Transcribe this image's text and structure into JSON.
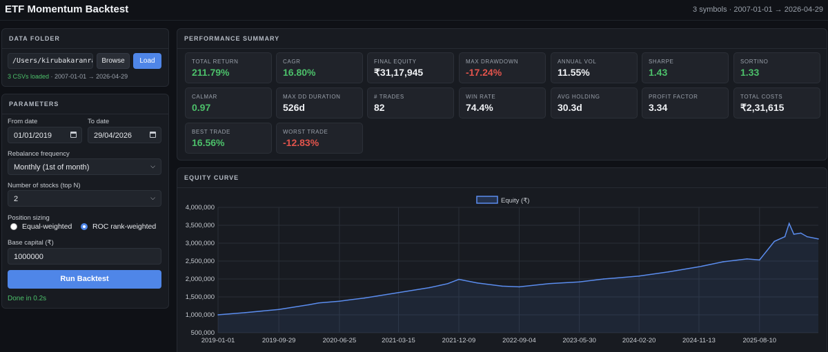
{
  "app": {
    "title": "ETF Momentum Backtest",
    "meta": "3 symbols · 2007-01-01 → 2026-04-29"
  },
  "data_folder": {
    "heading": "DATA FOLDER",
    "path_value": "/Users/kirubakaranra",
    "browse_label": "Browse",
    "load_label": "Load",
    "status_count": "3 CSVs loaded",
    "status_range": " · 2007-01-01 → 2026-04-29"
  },
  "parameters": {
    "heading": "PARAMETERS",
    "from_label": "From date",
    "from_value": "01/01/2019",
    "to_label": "To date",
    "to_value": "29/04/2026",
    "rebalance_label": "Rebalance frequency",
    "rebalance_value": "Monthly (1st of month)",
    "topn_label": "Number of stocks (top N)",
    "topn_value": "2",
    "sizing_label": "Position sizing",
    "sizing_options": [
      "Equal-weighted",
      "ROC rank-weighted"
    ],
    "sizing_selected": "ROC rank-weighted",
    "capital_label": "Base capital (₹)",
    "capital_value": "1000000",
    "run_label": "Run Backtest",
    "done_text": "Done in 0.2s"
  },
  "summary": {
    "heading": "PERFORMANCE SUMMARY",
    "cards": [
      {
        "label": "TOTAL RETURN",
        "value": "211.79%",
        "tone": "pos"
      },
      {
        "label": "CAGR",
        "value": "16.80%",
        "tone": "pos"
      },
      {
        "label": "FINAL EQUITY",
        "value": "₹31,17,945",
        "tone": "neutral"
      },
      {
        "label": "MAX DRAWDOWN",
        "value": "-17.24%",
        "tone": "neg"
      },
      {
        "label": "ANNUAL VOL",
        "value": "11.55%",
        "tone": "neutral"
      },
      {
        "label": "SHARPE",
        "value": "1.43",
        "tone": "pos"
      },
      {
        "label": "SORTINO",
        "value": "1.33",
        "tone": "pos"
      },
      {
        "label": "CALMAR",
        "value": "0.97",
        "tone": "pos"
      },
      {
        "label": "MAX DD DURATION",
        "value": "526d",
        "tone": "neutral"
      },
      {
        "label": "# TRADES",
        "value": "82",
        "tone": "neutral"
      },
      {
        "label": "WIN RATE",
        "value": "74.4%",
        "tone": "neutral"
      },
      {
        "label": "AVG HOLDING",
        "value": "30.3d",
        "tone": "neutral"
      },
      {
        "label": "PROFIT FACTOR",
        "value": "3.34",
        "tone": "neutral"
      },
      {
        "label": "TOTAL COSTS",
        "value": "₹2,31,615",
        "tone": "neutral"
      },
      {
        "label": "BEST TRADE",
        "value": "16.56%",
        "tone": "pos"
      },
      {
        "label": "WORST TRADE",
        "value": "-12.83%",
        "tone": "neg"
      }
    ]
  },
  "equity": {
    "heading": "EQUITY CURVE"
  },
  "colors": {
    "accent": "#4f86e8",
    "positive": "#4cc06a",
    "negative": "#e2544c",
    "line": "#5b8def"
  },
  "chart_data": {
    "type": "line",
    "title": "",
    "xlabel": "",
    "ylabel": "",
    "legend": "top-center",
    "grid": true,
    "series": [
      {
        "name": "Equity (₹)",
        "x": [
          "2019-01-01",
          "2019-05-01",
          "2019-09-29",
          "2020-02-10",
          "2020-03-25",
          "2020-06-25",
          "2020-10-15",
          "2021-03-15",
          "2021-08-01",
          "2021-10-20",
          "2021-12-09",
          "2022-03-01",
          "2022-06-20",
          "2022-09-04",
          "2023-01-15",
          "2023-05-30",
          "2023-09-15",
          "2024-02-20",
          "2024-07-01",
          "2024-11-13",
          "2025-03-01",
          "2025-06-15",
          "2025-08-10",
          "2025-10-15",
          "2025-12-01",
          "2025-12-20",
          "2026-01-10",
          "2026-02-10",
          "2026-03-10",
          "2026-04-29"
        ],
        "y": [
          1000000,
          1060000,
          1150000,
          1280000,
          1330000,
          1380000,
          1470000,
          1620000,
          1760000,
          1870000,
          1990000,
          1890000,
          1800000,
          1780000,
          1870000,
          1920000,
          2000000,
          2080000,
          2200000,
          2340000,
          2480000,
          2560000,
          2530000,
          3050000,
          3180000,
          3550000,
          3250000,
          3280000,
          3180000,
          3117945
        ]
      }
    ],
    "ylim": [
      500000,
      4000000
    ],
    "yticks": [
      "500,000",
      "1,000,000",
      "1,500,000",
      "2,000,000",
      "2,500,000",
      "3,000,000",
      "3,500,000",
      "4,000,000"
    ],
    "xticks": [
      "2019-01-01",
      "2019-09-29",
      "2020-06-25",
      "2021-03-15",
      "2021-12-09",
      "2022-09-04",
      "2023-05-30",
      "2024-02-20",
      "2024-11-13",
      "2025-08-10"
    ]
  }
}
